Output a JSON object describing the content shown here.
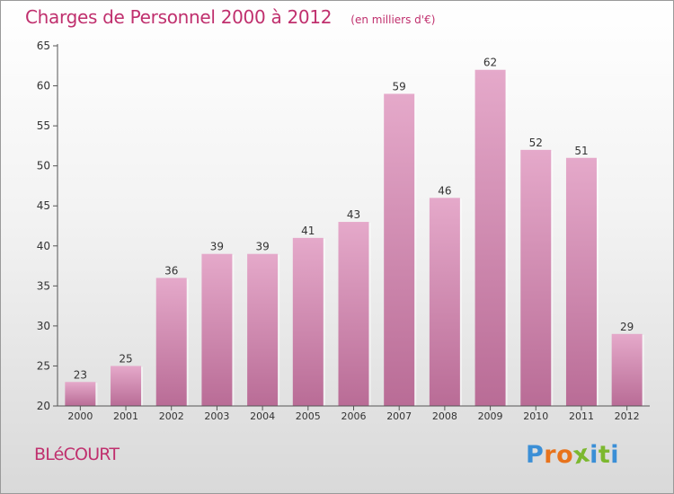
{
  "title": "Charges de Personnel 2000 à 2012",
  "subtitle": "(en milliers d'€)",
  "commune": "BLéCOURT",
  "logo": {
    "letters": [
      "P",
      "r",
      "o",
      "x",
      "i",
      "t",
      "i"
    ],
    "colors": [
      "#3b8fd6",
      "#e8731c",
      "#e8731c",
      "#7cb82f",
      "#3b8fd6",
      "#7cb82f",
      "#3b8fd6"
    ]
  },
  "colors": {
    "bar": "#d68fb5",
    "bar_light": "#e5a9ca",
    "bar_dark": "#b96c96",
    "axis": "#555555",
    "text": "#333333"
  },
  "chart_data": {
    "type": "bar",
    "categories": [
      "2000",
      "2001",
      "2002",
      "2003",
      "2004",
      "2005",
      "2006",
      "2007",
      "2008",
      "2009",
      "2010",
      "2011",
      "2012"
    ],
    "values": [
      23,
      25,
      36,
      39,
      39,
      41,
      43,
      59,
      46,
      62,
      52,
      51,
      29
    ],
    "ylim": [
      20,
      65
    ],
    "yticks": [
      20,
      25,
      30,
      35,
      40,
      45,
      50,
      55,
      60,
      65
    ],
    "grid": false
  }
}
